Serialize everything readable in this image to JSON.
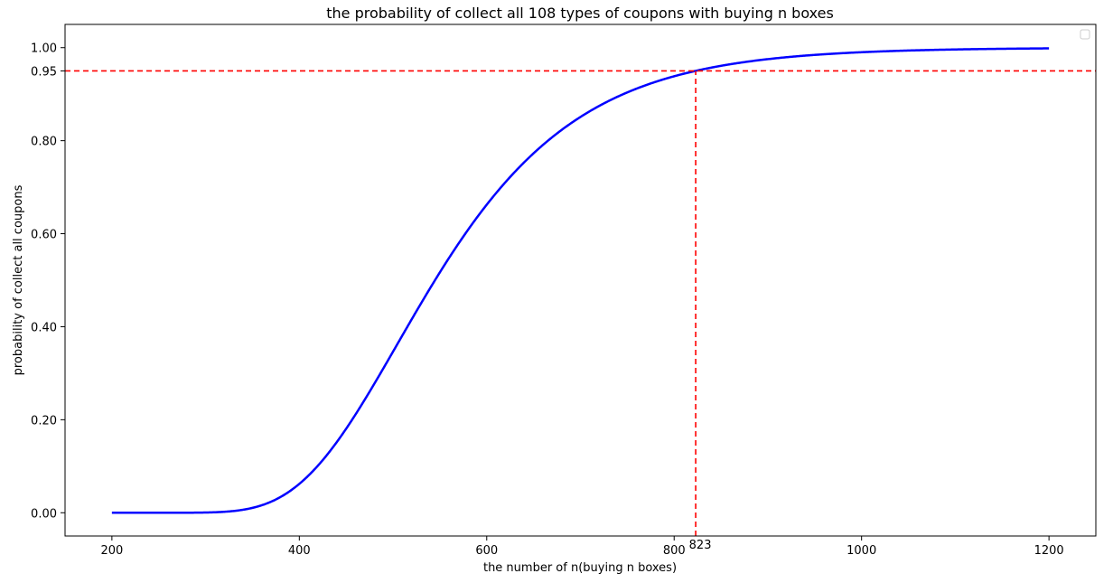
{
  "chart_data": {
    "type": "line",
    "title": "the probability of collect all 108 types of coupons with buying n boxes",
    "xlabel": "the number of n(buying n boxes)",
    "ylabel": "probability of collect all coupons",
    "xlim": [
      150,
      1250
    ],
    "ylim": [
      -0.05,
      1.05
    ],
    "x_ticks": [
      200,
      400,
      600,
      800,
      1000,
      1200
    ],
    "x_tick_labels": [
      "200",
      "400",
      "600",
      "800",
      "1000",
      "1200"
    ],
    "y_ticks": [
      0.0,
      0.2,
      0.4,
      0.6,
      0.8,
      0.95,
      1.0
    ],
    "y_tick_labels": [
      "0.00",
      "0.20",
      "0.40",
      "0.60",
      "0.80",
      "0.95",
      "1.00"
    ],
    "coupon_types": 108,
    "n_range": [
      200,
      1200
    ],
    "grid": false,
    "legend": {
      "placement": "top-right",
      "entries": []
    },
    "series": [
      {
        "color": "#0000ff",
        "x_start": 200,
        "x_end": 1200
      }
    ],
    "reference_lines": [
      {
        "orientation": "horizontal",
        "y": 0.95,
        "color": "#ff0000",
        "style": "dashed"
      },
      {
        "orientation": "vertical",
        "x": 823,
        "color": "#ff0000",
        "style": "dashed"
      }
    ],
    "annotations": [
      {
        "text": "823",
        "x": 823,
        "y": -0.05
      }
    ]
  }
}
